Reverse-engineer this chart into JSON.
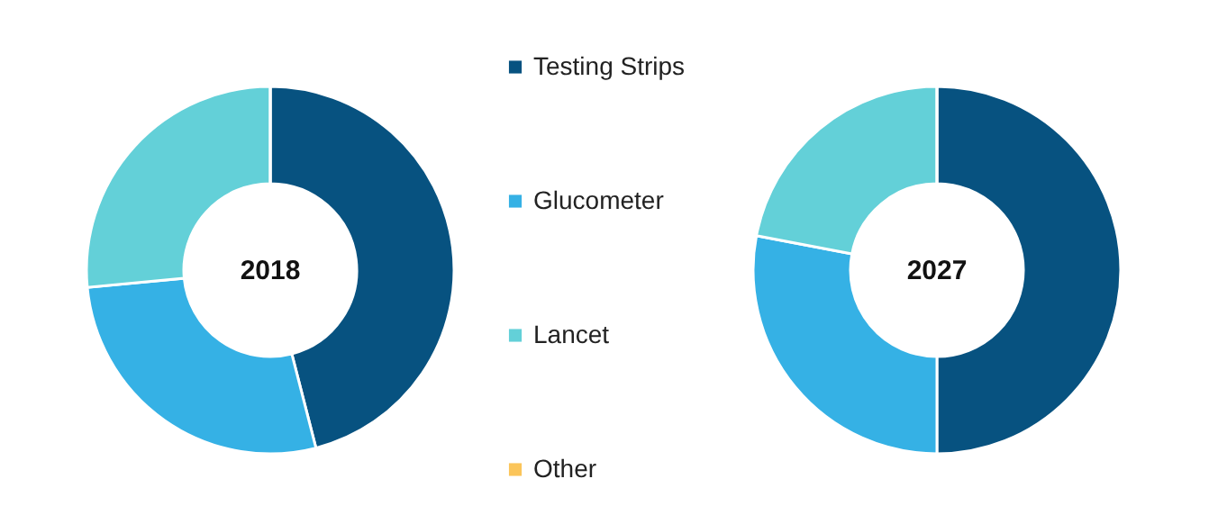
{
  "chart_data": {
    "type": "donut",
    "categories": [
      "Testing Strips",
      "Glucometer",
      "Lancet",
      "Other"
    ],
    "colors": [
      "#075280",
      "#35b1e5",
      "#63d0d8",
      "#fbc55a"
    ],
    "legend": "right",
    "series": [
      {
        "name": "2018",
        "values": [
          46,
          27.5,
          26.5,
          0
        ]
      },
      {
        "name": "2027",
        "values": [
          50,
          28,
          22,
          0
        ]
      }
    ]
  }
}
